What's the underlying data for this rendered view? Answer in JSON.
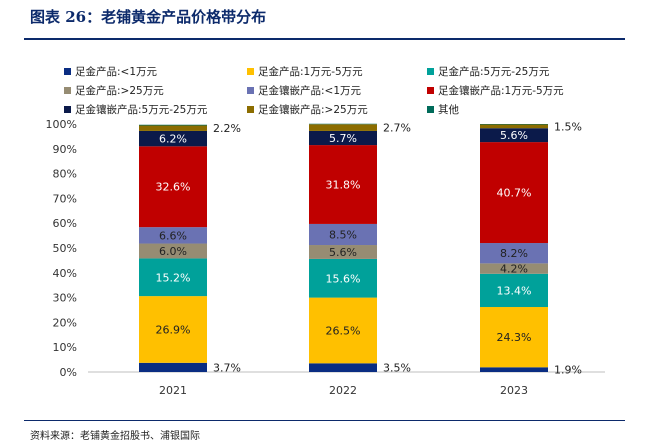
{
  "title": "图表 26：老铺黄金产品价格带分布",
  "source": "资料来源：老铺黄金招股书、浦银国际",
  "chart_data": {
    "type": "bar",
    "stacked": true,
    "categories": [
      "2021",
      "2022",
      "2023"
    ],
    "yticks": [
      "0%",
      "10%",
      "20%",
      "30%",
      "40%",
      "50%",
      "60%",
      "70%",
      "80%",
      "90%",
      "100%"
    ],
    "ylim": [
      0,
      100
    ],
    "legend_position": "top",
    "series": [
      {
        "name": "足金产品:<1万元",
        "color": "#0a2d82",
        "values": [
          3.7,
          3.5,
          1.9
        ],
        "labels": [
          "3.7%",
          "3.5%",
          "1.9%"
        ],
        "label_side": "right"
      },
      {
        "name": "足金产品:1万元-5万元",
        "color": "#ffc000",
        "values": [
          26.9,
          26.5,
          24.3
        ],
        "labels": [
          "26.9%",
          "26.5%",
          "24.3%"
        ],
        "label_side": "inside"
      },
      {
        "name": "足金产品:5万元-25万元",
        "color": "#00a19a",
        "values": [
          15.2,
          15.6,
          13.4
        ],
        "labels": [
          "15.2%",
          "15.6%",
          "13.4%"
        ],
        "label_side": "inside"
      },
      {
        "name": "足金产品:>25万元",
        "color": "#968c73",
        "values": [
          6.0,
          5.6,
          4.2
        ],
        "labels": [
          "6.0%",
          "5.6%",
          "4.2%"
        ],
        "label_side": "inside"
      },
      {
        "name": "足金镶嵌产品:<1万元",
        "color": "#6a72b3",
        "values": [
          6.6,
          8.5,
          8.2
        ],
        "labels": [
          "6.6%",
          "8.5%",
          "8.2%"
        ],
        "label_side": "inside"
      },
      {
        "name": "足金镶嵌产品:1万元-5万元",
        "color": "#c00000",
        "values": [
          32.6,
          31.8,
          40.7
        ],
        "labels": [
          "32.6%",
          "31.8%",
          "40.7%"
        ],
        "label_side": "inside"
      },
      {
        "name": "足金镶嵌产品:5万元-25万元",
        "color": "#0b1a4a",
        "values": [
          6.2,
          5.7,
          5.6
        ],
        "labels": [
          "6.2%",
          "5.7%",
          "5.6%"
        ],
        "label_side": "inside"
      },
      {
        "name": "足金镶嵌产品:>25万元",
        "color": "#8c6d00",
        "values": [
          2.2,
          2.7,
          1.5
        ],
        "labels": [
          "2.2%",
          "2.7%",
          "1.5%"
        ],
        "label_side": "right"
      },
      {
        "name": "其他",
        "color": "#006b5a",
        "values": [
          0.3,
          0.2,
          0.2
        ],
        "labels": [
          "",
          "",
          ""
        ],
        "label_side": "none"
      }
    ]
  }
}
